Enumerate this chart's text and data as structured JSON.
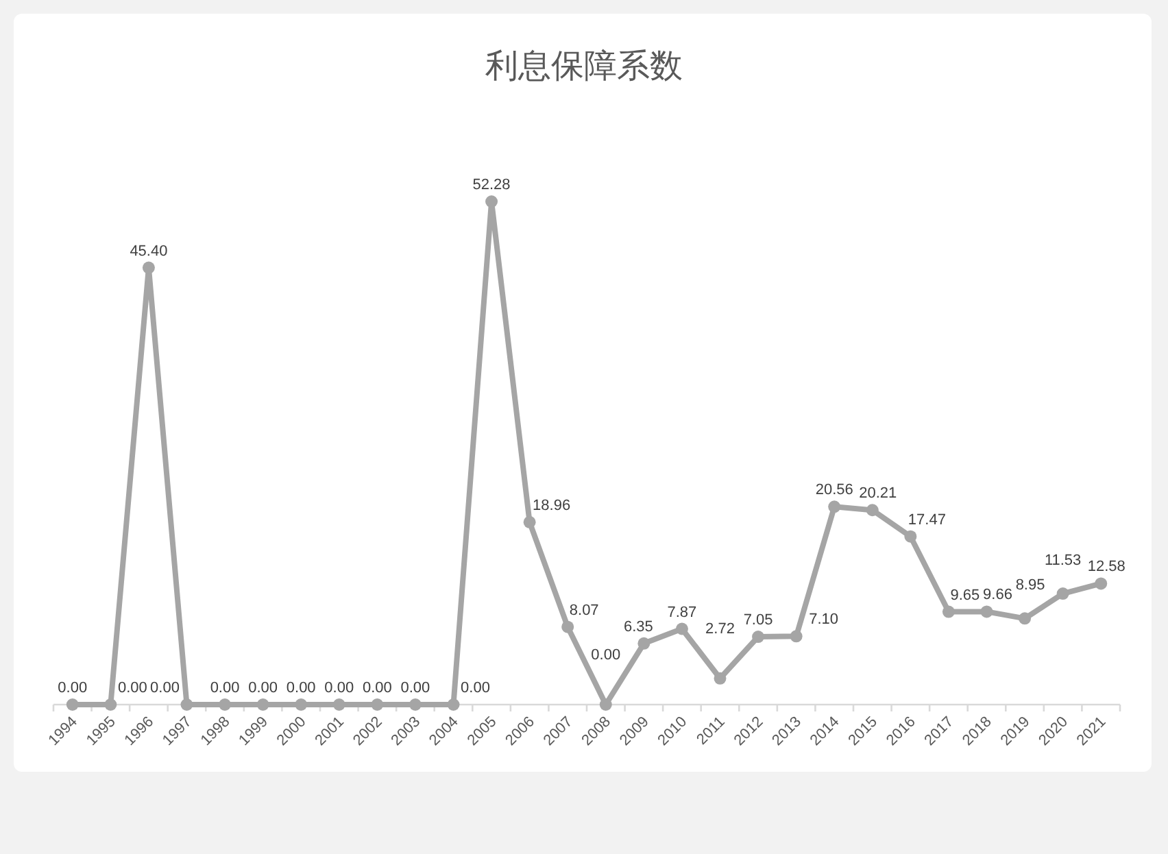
{
  "chart_data": {
    "type": "line",
    "title": "利息保障系数",
    "categories": [
      "1994",
      "1995",
      "1996",
      "1997",
      "1998",
      "1999",
      "2000",
      "2001",
      "2002",
      "2003",
      "2004",
      "2005",
      "2006",
      "2007",
      "2008",
      "2009",
      "2010",
      "2011",
      "2012",
      "2013",
      "2014",
      "2015",
      "2016",
      "2017",
      "2018",
      "2019",
      "2020",
      "2021"
    ],
    "series": [
      {
        "color": "#a5a5a5",
        "values": [
          0,
          0,
          45.4,
          0,
          0,
          0,
          0,
          0,
          0,
          0,
          0,
          52.28,
          18.96,
          8.07,
          0,
          6.35,
          7.87,
          2.72,
          7.05,
          7.1,
          20.56,
          20.21,
          17.47,
          9.65,
          9.66,
          8.95,
          11.53,
          12.58
        ],
        "value_labels": [
          "0.00",
          "0.00",
          "45.40",
          "0.00",
          "0.00",
          "0.00",
          "0.00",
          "0.00",
          "0.00",
          "0.00",
          "0.00",
          "52.28",
          "18.96",
          "8.07",
          "0.00",
          "6.35",
          "7.87",
          "2.72",
          "7.05",
          "7.10",
          "20.56",
          "20.21",
          "17.47",
          "9.65",
          "9.66",
          "8.95",
          "11.53",
          "12.58"
        ]
      }
    ],
    "marker": "circle",
    "line_style": "solid"
  }
}
